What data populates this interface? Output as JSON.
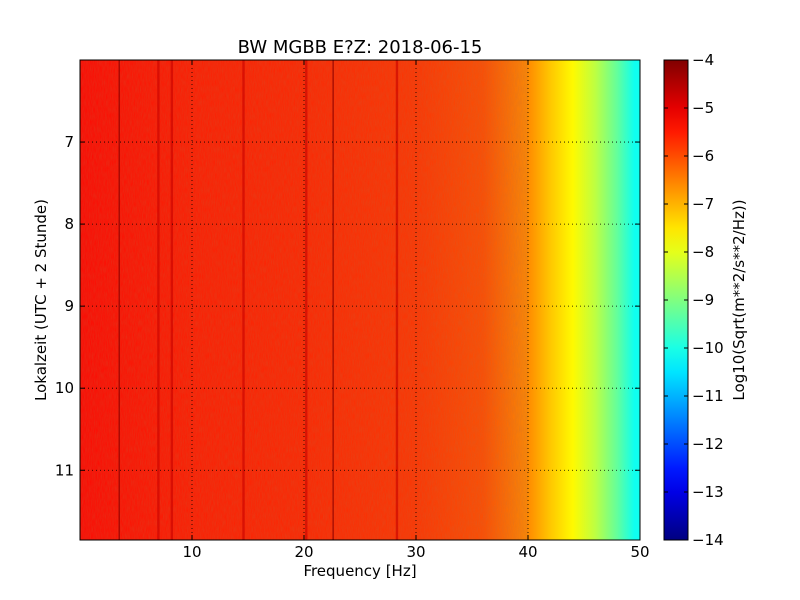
{
  "chart_data": {
    "type": "heatmap",
    "title": "BW MGBB E?Z: 2018-06-15",
    "xlabel": "Frequency [Hz]",
    "ylabel": "Lokalzeit (UTC + 2 Stunde)",
    "colorbar_label": "Log10(Sqrt(m**2/s**2/Hz))",
    "colormap": "jet",
    "xlim": [
      0,
      50
    ],
    "ylim": [
      11.85,
      6.0
    ],
    "y_inverted": true,
    "x_ticks": [
      {
        "value": 10,
        "label": "10"
      },
      {
        "value": 20,
        "label": "20"
      },
      {
        "value": 30,
        "label": "30"
      },
      {
        "value": 40,
        "label": "40"
      },
      {
        "value": 50,
        "label": "50"
      }
    ],
    "y_ticks": [
      {
        "value": 7,
        "label": "7"
      },
      {
        "value": 8,
        "label": "8"
      },
      {
        "value": 9,
        "label": "9"
      },
      {
        "value": 10,
        "label": "10"
      },
      {
        "value": 11,
        "label": "11"
      }
    ],
    "colorbar_range": [
      -14,
      -4
    ],
    "colorbar_ticks": [
      {
        "value": -4,
        "label": "−4"
      },
      {
        "value": -5,
        "label": "−5"
      },
      {
        "value": -6,
        "label": "−6"
      },
      {
        "value": -7,
        "label": "−7"
      },
      {
        "value": -8,
        "label": "−8"
      },
      {
        "value": -9,
        "label": "−9"
      },
      {
        "value": -10,
        "label": "−10"
      },
      {
        "value": -11,
        "label": "−11"
      },
      {
        "value": -12,
        "label": "−12"
      },
      {
        "value": -13,
        "label": "−13"
      },
      {
        "value": -14,
        "label": "−14"
      }
    ],
    "grid": true,
    "frequency_profile": [
      {
        "hz": 0,
        "value": -5.3
      },
      {
        "hz": 10,
        "value": -5.5
      },
      {
        "hz": 20,
        "value": -5.6
      },
      {
        "hz": 30,
        "value": -5.75
      },
      {
        "hz": 36,
        "value": -6.0
      },
      {
        "hz": 40,
        "value": -6.6
      },
      {
        "hz": 42,
        "value": -7.2
      },
      {
        "hz": 44,
        "value": -7.7
      },
      {
        "hz": 46,
        "value": -8.4
      },
      {
        "hz": 48,
        "value": -9.3
      },
      {
        "hz": 49.5,
        "value": -10.1
      }
    ],
    "vertical_lines_hz": [
      3.5,
      7.0,
      8.2,
      14.6,
      20.2,
      22.6,
      28.3
    ],
    "strong_lines_hz": [
      3.5,
      22.6
    ]
  }
}
